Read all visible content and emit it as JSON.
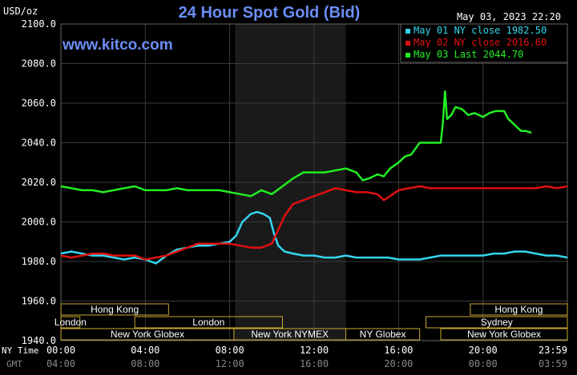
{
  "chart_data": {
    "type": "line",
    "title": "24 Hour Spot Gold (Bid)",
    "ylabel": "USD/oz",
    "timestamp": "May 03, 2023 22:20",
    "watermark": "www.kitco.com",
    "ylim": [
      1940,
      2100
    ],
    "yticks": [
      "2100.0",
      "2080.0",
      "2060.0",
      "2040.0",
      "2020.0",
      "2000.0",
      "1980.0",
      "1960.0",
      "1940.0"
    ],
    "ytick_values": [
      2100,
      2080,
      2060,
      2040,
      2020,
      2000,
      1980,
      1960,
      1940
    ],
    "x_unit": "hours",
    "xlim": [
      0,
      24
    ],
    "grid": true,
    "ny_time_label": "NY Time",
    "gmt_label": "GMT",
    "ny_ticks": [
      "00:00",
      "04:00",
      "08:00",
      "12:00",
      "16:00",
      "20:00",
      "23:59"
    ],
    "gmt_ticks": [
      "04:00",
      "08:00",
      "12:00",
      "16:00",
      "20:00",
      "00:00",
      "03:59"
    ],
    "tick_hours": [
      0,
      4,
      8,
      12,
      16,
      20,
      24
    ],
    "legend_position": "top-right",
    "shaded_region_hours": [
      8.25,
      13.5
    ],
    "colors": {
      "cyan": "#33d6ee",
      "red": "#e01010",
      "green": "#22ee22",
      "title": "#6b8ef5",
      "grid": "#3a3a3a",
      "market_bar": "#c8a830",
      "shade": "#1a1a1a"
    },
    "sessions": [
      {
        "label": "Hong Kong",
        "row": 0,
        "start": 0,
        "end": 5.1
      },
      {
        "label": "Hong Kong",
        "row": 0,
        "end_label": true,
        "start": 19.4,
        "end": 24
      },
      {
        "label": "London",
        "row": 1,
        "start": 0,
        "end": 0.9
      },
      {
        "label": "London",
        "row": 1,
        "start": 3.5,
        "end": 10.5
      },
      {
        "label": "Sydney",
        "row": 1,
        "start": 17.3,
        "end": 24
      },
      {
        "label": "New York Globex",
        "row": 2,
        "start": 0,
        "end": 8.2
      },
      {
        "label": "New York NYMEX",
        "row": 2,
        "start": 8.2,
        "end": 13.5
      },
      {
        "label": "NY Globex",
        "row": 2,
        "start": 13.5,
        "end": 17.0
      },
      {
        "label": "New York Globex",
        "row": 2,
        "start": 18.0,
        "end": 24
      }
    ],
    "series": [
      {
        "name": "May 01 NY close 1982.50",
        "color": "#33d6ee",
        "x": [
          0,
          0.5,
          1,
          1.5,
          2,
          2.5,
          3,
          3.5,
          4,
          4.5,
          5,
          5.5,
          6,
          6.5,
          7,
          7.5,
          8,
          8.3,
          8.6,
          9,
          9.3,
          9.6,
          9.9,
          10.1,
          10.3,
          10.6,
          11,
          11.5,
          12,
          12.5,
          13,
          13.5,
          14,
          14.5,
          15,
          15.5,
          16,
          16.5,
          17,
          17.5,
          18,
          18.5,
          19,
          19.5,
          20,
          20.5,
          21,
          21.5,
          22,
          22.5,
          23,
          23.5,
          24
        ],
        "y": [
          1984,
          1985,
          1984,
          1983,
          1983,
          1982,
          1981,
          1982,
          1981,
          1979,
          1983,
          1986,
          1987,
          1988,
          1988,
          1989,
          1990,
          1993,
          2000,
          2004,
          2005,
          2004,
          2002,
          1994,
          1988,
          1985,
          1984,
          1983,
          1983,
          1982,
          1982,
          1983,
          1982,
          1982,
          1982,
          1982,
          1981,
          1981,
          1981,
          1982,
          1983,
          1983,
          1983,
          1983,
          1983,
          1984,
          1984,
          1985,
          1985,
          1984,
          1983,
          1983,
          1982
        ]
      },
      {
        "name": "May 02 NY close 2016.60",
        "color": "#e01010",
        "x": [
          0,
          0.5,
          1,
          1.5,
          2,
          2.5,
          3,
          3.5,
          4,
          4.5,
          5,
          5.5,
          6,
          6.5,
          7,
          7.5,
          8,
          8.5,
          9,
          9.5,
          10,
          10.3,
          10.6,
          11,
          11.5,
          12,
          12.5,
          13,
          13.5,
          14,
          14.5,
          15,
          15.3,
          15.6,
          16,
          16.5,
          17,
          17.5,
          18,
          18.5,
          19,
          19.5,
          20,
          20.5,
          21,
          21.5,
          22,
          22.5,
          23,
          23.5,
          24
        ],
        "y": [
          1983,
          1982,
          1983,
          1984,
          1984,
          1983,
          1983,
          1983,
          1981,
          1982,
          1983,
          1985,
          1987,
          1989,
          1989,
          1989,
          1989,
          1988,
          1987,
          1987,
          1989,
          1996,
          2003,
          2009,
          2011,
          2013,
          2015,
          2017,
          2016,
          2015,
          2015,
          2014,
          2011,
          2013,
          2016,
          2017,
          2018,
          2017,
          2017,
          2017,
          2017,
          2017,
          2017,
          2017,
          2017,
          2017,
          2017,
          2017,
          2018,
          2017,
          2018
        ]
      },
      {
        "name": "May 03 Last 2044.70",
        "color": "#22ee22",
        "x": [
          0,
          0.5,
          1,
          1.5,
          2,
          2.5,
          3,
          3.5,
          4,
          4.5,
          5,
          5.5,
          6,
          6.5,
          7,
          7.5,
          8,
          8.5,
          9,
          9.5,
          10,
          10.5,
          11,
          11.5,
          12,
          12.5,
          13,
          13.5,
          14,
          14.3,
          14.6,
          15,
          15.3,
          15.6,
          16,
          16.3,
          16.6,
          17,
          17.3,
          17.6,
          18,
          18.1,
          18.2,
          18.3,
          18.5,
          18.7,
          19,
          19.3,
          19.6,
          20,
          20.3,
          20.6,
          21,
          21.2,
          21.5,
          21.8,
          22,
          22.3
        ],
        "y": [
          2018,
          2017,
          2016,
          2016,
          2015,
          2016,
          2017,
          2018,
          2016,
          2016,
          2016,
          2017,
          2016,
          2016,
          2016,
          2016,
          2015,
          2014,
          2013,
          2016,
          2014,
          2018,
          2022,
          2025,
          2025,
          2025,
          2026,
          2027,
          2025,
          2021,
          2022,
          2024,
          2023,
          2027,
          2030,
          2033,
          2034,
          2040,
          2040,
          2040,
          2040,
          2050,
          2066,
          2052,
          2054,
          2058,
          2057,
          2054,
          2055,
          2053,
          2055,
          2056,
          2056,
          2052,
          2049,
          2046,
          2046,
          2045
        ]
      }
    ]
  }
}
